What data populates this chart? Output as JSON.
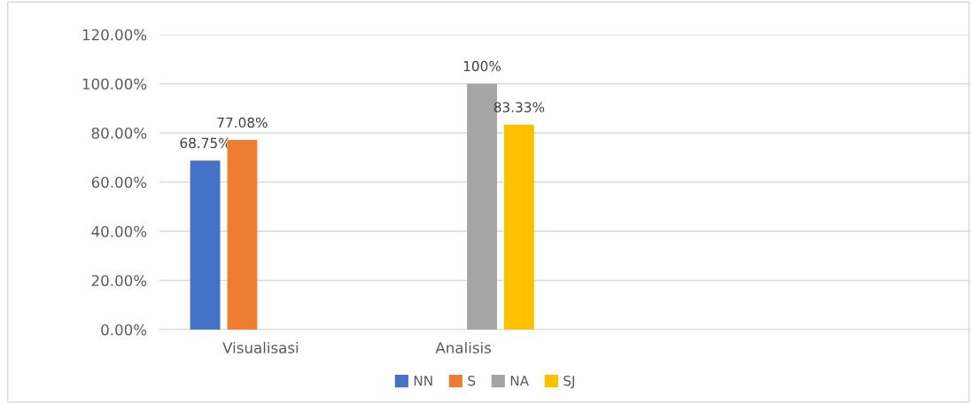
{
  "chart_data": {
    "type": "bar",
    "categories": [
      "Visualisasi",
      "Analisis",
      null,
      null
    ],
    "series": [
      {
        "name": "NN",
        "color": "#4472c4",
        "values": [
          68.75,
          null,
          null,
          null
        ],
        "value_labels": [
          "68.75%",
          null,
          null,
          null
        ]
      },
      {
        "name": "S",
        "color": "#ed7d31",
        "values": [
          77.08,
          null,
          null,
          null
        ],
        "value_labels": [
          "77.08%",
          null,
          null,
          null
        ]
      },
      {
        "name": "NA",
        "color": "#a5a5a5",
        "values": [
          null,
          100,
          null,
          null
        ],
        "value_labels": [
          null,
          "100%",
          null,
          null
        ]
      },
      {
        "name": "SJ",
        "color": "#ffc000",
        "values": [
          null,
          83.33,
          null,
          null
        ],
        "value_labels": [
          null,
          "83.33%",
          null,
          null
        ]
      }
    ],
    "ylim": [
      0,
      120
    ],
    "yticks": [
      {
        "value": 0,
        "label": "0.00%"
      },
      {
        "value": 20,
        "label": "20.00%"
      },
      {
        "value": 40,
        "label": "40.00%"
      },
      {
        "value": 60,
        "label": "60.00%"
      },
      {
        "value": 80,
        "label": "80.00%"
      },
      {
        "value": 100,
        "label": "100.00%"
      },
      {
        "value": 120,
        "label": "120.00%"
      }
    ],
    "grid": "y",
    "legend": "bottom"
  }
}
